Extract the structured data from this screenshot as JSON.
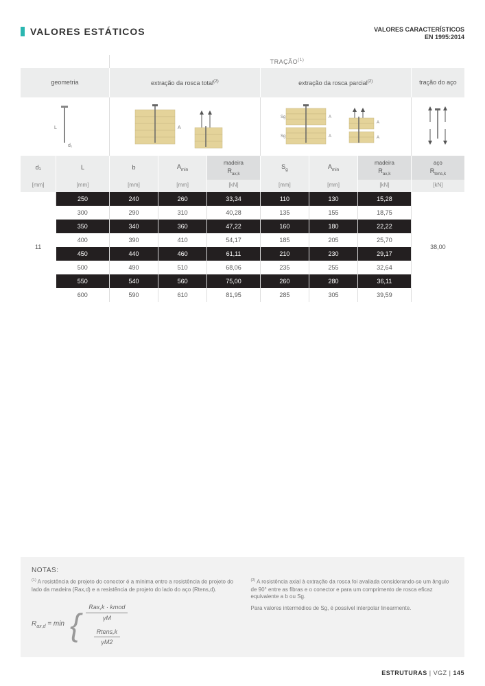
{
  "header": {
    "title": "VALORES ESTÁTICOS",
    "right_line1": "VALORES CARACTERÍSTICOS",
    "right_line2": "EN 1995:2014"
  },
  "table": {
    "top_label": "TRAÇÃO",
    "top_label_sup": "(1)",
    "group_headers": {
      "geometria": "geometria",
      "extracao_total": "extração da rosca total",
      "extracao_total_sup": "(2)",
      "extracao_parcial": "extração da rosca parcial",
      "extracao_parcial_sup": "(2)",
      "tracao_aco": "tração do aço"
    },
    "sub_headers": {
      "d1": "d₁",
      "L": "L",
      "b": "b",
      "Amin_1": "A",
      "Amin_1_sub": "min",
      "madeira1": "madeira",
      "Raxk_1": "R",
      "Raxk_1_sub": "ax,k",
      "Sg": "S",
      "Sg_sub": "g",
      "Amin_2": "A",
      "Amin_2_sub": "min",
      "madeira2": "madeira",
      "Raxk_2": "R",
      "Raxk_2_sub": "ax,k",
      "aco": "aço",
      "Rtensk": "R",
      "Rtensk_sub": "tens,k"
    },
    "units": {
      "mm": "[mm]",
      "kN": "[kN]"
    },
    "d1_value": "11",
    "rtens_value": "38,00",
    "rows": [
      {
        "L": "250",
        "b": "240",
        "Amin1": "260",
        "Raxk1": "33,34",
        "Sg": "110",
        "Amin2": "130",
        "Raxk2": "15,28"
      },
      {
        "L": "300",
        "b": "290",
        "Amin1": "310",
        "Raxk1": "40,28",
        "Sg": "135",
        "Amin2": "155",
        "Raxk2": "18,75"
      },
      {
        "L": "350",
        "b": "340",
        "Amin1": "360",
        "Raxk1": "47,22",
        "Sg": "160",
        "Amin2": "180",
        "Raxk2": "22,22"
      },
      {
        "L": "400",
        "b": "390",
        "Amin1": "410",
        "Raxk1": "54,17",
        "Sg": "185",
        "Amin2": "205",
        "Raxk2": "25,70"
      },
      {
        "L": "450",
        "b": "440",
        "Amin1": "460",
        "Raxk1": "61,11",
        "Sg": "210",
        "Amin2": "230",
        "Raxk2": "29,17"
      },
      {
        "L": "500",
        "b": "490",
        "Amin1": "510",
        "Raxk1": "68,06",
        "Sg": "235",
        "Amin2": "255",
        "Raxk2": "32,64"
      },
      {
        "L": "550",
        "b": "540",
        "Amin1": "560",
        "Raxk1": "75,00",
        "Sg": "260",
        "Amin2": "280",
        "Raxk2": "36,11"
      },
      {
        "L": "600",
        "b": "590",
        "Amin1": "610",
        "Raxk1": "81,95",
        "Sg": "285",
        "Amin2": "305",
        "Raxk2": "39,59"
      }
    ],
    "row_colors": {
      "dark": "#231f20",
      "light": "#ffffff"
    }
  },
  "notas": {
    "title": "NOTAS:",
    "note1_sup": "(1)",
    "note1": "A resistência de projeto do conector é a mínima entre a resistência de projeto do lado da madeira (Rax,d) e a resistência de projeto do lado do aço (Rtens,d).",
    "note2_sup": "(2)",
    "note2": "A resistência axial à extração da rosca foi avaliada considerando-se um ângulo de 90° entre as fibras e o conector e para um comprimento de rosca eficaz equivalente a b ou Sg.",
    "note2b": "Para valores intermédios de Sg, é possível interpolar linearmente.",
    "formula": {
      "lhs": "R",
      "lhs_sub": "ax,d",
      "eq": " = min",
      "frac1_num": "Rax,k · kmod",
      "frac1_den": "γM",
      "frac2_num": "Rtens,k",
      "frac2_den": "γM2"
    }
  },
  "footer": {
    "text1": "ESTRUTURAS",
    "sep": "  |  ",
    "text2": "VGZ",
    "sep2": "  |  ",
    "page": "145"
  }
}
